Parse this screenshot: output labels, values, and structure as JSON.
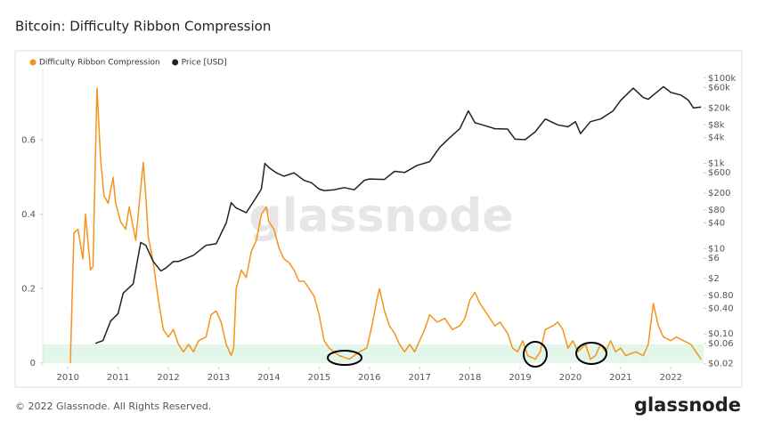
{
  "chart_data": {
    "type": "line",
    "title": "Bitcoin: Difficulty Ribbon Compression",
    "watermark": "glassnode",
    "footer": "© 2022 Glassnode. All Rights Reserved.",
    "logo": "glassnode",
    "xlim": [
      2009.5,
      2022.65
    ],
    "xticks": [
      2010,
      2011,
      2012,
      2013,
      2014,
      2015,
      2016,
      2017,
      2018,
      2019,
      2020,
      2021,
      2022
    ],
    "ylim": [
      -0.01,
      0.79
    ],
    "yticks": [
      0,
      0.2,
      0.4,
      0.6
    ],
    "y2lim": [
      0.017,
      160000
    ],
    "y2_log_scale": true,
    "y2ticks": [
      {
        "value": 100000,
        "label": "$100k"
      },
      {
        "value": 60000,
        "label": "$60k"
      },
      {
        "value": 20000,
        "label": "$20k"
      },
      {
        "value": 8000,
        "label": "$8k"
      },
      {
        "value": 4000,
        "label": "$4k"
      },
      {
        "value": 1000,
        "label": "$1k"
      },
      {
        "value": 600,
        "label": "$600"
      },
      {
        "value": 200,
        "label": "$200"
      },
      {
        "value": 80,
        "label": "$80"
      },
      {
        "value": 40,
        "label": "$40"
      },
      {
        "value": 10,
        "label": "$10"
      },
      {
        "value": 6,
        "label": "$6"
      },
      {
        "value": 2,
        "label": "$2"
      },
      {
        "value": 0.8,
        "label": "$0.80"
      },
      {
        "value": 0.4,
        "label": "$0.40"
      },
      {
        "value": 0.1,
        "label": "$0.10"
      },
      {
        "value": 0.06,
        "label": "$0.06"
      },
      {
        "value": 0.02,
        "label": "$0.02"
      }
    ],
    "shaded_band": {
      "from": 0,
      "to": 0.05,
      "color": "#e3f6ea"
    },
    "legend_position": "top-left",
    "series": [
      {
        "name": "Difficulty Ribbon Compression",
        "color": "#f7931a",
        "x": [
          2010.05,
          2010.12,
          2010.2,
          2010.3,
          2010.35,
          2010.45,
          2010.5,
          2010.58,
          2010.65,
          2010.72,
          2010.8,
          2010.9,
          2010.95,
          2011.05,
          2011.15,
          2011.22,
          2011.35,
          2011.45,
          2011.5,
          2011.55,
          2011.6,
          2011.7,
          2011.8,
          2011.9,
          2012.0,
          2012.1,
          2012.2,
          2012.3,
          2012.4,
          2012.5,
          2012.6,
          2012.75,
          2012.85,
          2012.95,
          2013.05,
          2013.15,
          2013.25,
          2013.3,
          2013.35,
          2013.45,
          2013.55,
          2013.65,
          2013.75,
          2013.85,
          2013.95,
          2014.0,
          2014.1,
          2014.2,
          2014.3,
          2014.4,
          2014.5,
          2014.6,
          2014.7,
          2014.8,
          2014.9,
          2015.0,
          2015.1,
          2015.2,
          2015.3,
          2015.4,
          2015.5,
          2015.6,
          2015.7,
          2015.8,
          2015.95,
          2016.05,
          2016.15,
          2016.2,
          2016.3,
          2016.4,
          2016.5,
          2016.6,
          2016.7,
          2016.8,
          2016.9,
          2017.0,
          2017.1,
          2017.2,
          2017.35,
          2017.5,
          2017.65,
          2017.8,
          2017.9,
          2018.0,
          2018.1,
          2018.2,
          2018.35,
          2018.5,
          2018.6,
          2018.75,
          2018.85,
          2018.95,
          2019.05,
          2019.15,
          2019.3,
          2019.4,
          2019.5,
          2019.65,
          2019.75,
          2019.85,
          2019.95,
          2020.05,
          2020.15,
          2020.3,
          2020.4,
          2020.5,
          2020.6,
          2020.7,
          2020.8,
          2020.9,
          2021.0,
          2021.1,
          2021.3,
          2021.45,
          2021.55,
          2021.65,
          2021.75,
          2021.85,
          2022.0,
          2022.1,
          2022.25,
          2022.4,
          2022.5,
          2022.6
        ],
        "values": [
          0.0,
          0.35,
          0.36,
          0.28,
          0.4,
          0.25,
          0.26,
          0.74,
          0.55,
          0.45,
          0.43,
          0.5,
          0.43,
          0.38,
          0.36,
          0.42,
          0.33,
          0.47,
          0.54,
          0.45,
          0.34,
          0.27,
          0.17,
          0.09,
          0.07,
          0.09,
          0.05,
          0.03,
          0.05,
          0.03,
          0.06,
          0.07,
          0.13,
          0.14,
          0.11,
          0.05,
          0.02,
          0.04,
          0.2,
          0.25,
          0.23,
          0.3,
          0.33,
          0.4,
          0.42,
          0.38,
          0.36,
          0.31,
          0.28,
          0.27,
          0.25,
          0.22,
          0.22,
          0.2,
          0.18,
          0.13,
          0.06,
          0.04,
          0.03,
          0.02,
          0.015,
          0.01,
          0.02,
          0.03,
          0.04,
          0.1,
          0.17,
          0.2,
          0.14,
          0.1,
          0.08,
          0.05,
          0.03,
          0.05,
          0.03,
          0.06,
          0.09,
          0.13,
          0.11,
          0.12,
          0.09,
          0.1,
          0.12,
          0.17,
          0.19,
          0.16,
          0.13,
          0.1,
          0.11,
          0.08,
          0.04,
          0.03,
          0.06,
          0.02,
          0.01,
          0.03,
          0.09,
          0.1,
          0.11,
          0.09,
          0.04,
          0.06,
          0.03,
          0.05,
          0.01,
          0.02,
          0.05,
          0.03,
          0.06,
          0.03,
          0.04,
          0.02,
          0.03,
          0.02,
          0.05,
          0.16,
          0.1,
          0.07,
          0.06,
          0.07,
          0.06,
          0.05,
          0.03,
          0.01
        ]
      },
      {
        "name": "Price [USD]",
        "color": "#222222",
        "axis": "y2",
        "x": [
          2010.55,
          2010.7,
          2010.85,
          2011.0,
          2011.1,
          2011.3,
          2011.45,
          2011.55,
          2011.7,
          2011.85,
          2011.95,
          2012.1,
          2012.2,
          2012.5,
          2012.75,
          2012.95,
          2013.15,
          2013.25,
          2013.35,
          2013.55,
          2013.7,
          2013.85,
          2013.92,
          2014.0,
          2014.15,
          2014.3,
          2014.5,
          2014.7,
          2014.85,
          2015.0,
          2015.1,
          2015.3,
          2015.5,
          2015.7,
          2015.9,
          2016.0,
          2016.3,
          2016.5,
          2016.7,
          2016.95,
          2017.2,
          2017.4,
          2017.6,
          2017.8,
          2017.97,
          2018.1,
          2018.25,
          2018.5,
          2018.75,
          2018.9,
          2019.1,
          2019.3,
          2019.5,
          2019.75,
          2019.95,
          2020.1,
          2020.2,
          2020.4,
          2020.6,
          2020.85,
          2021.0,
          2021.25,
          2021.45,
          2021.55,
          2021.85,
          2022.0,
          2022.2,
          2022.35,
          2022.45,
          2022.6
        ],
        "values": [
          0.06,
          0.07,
          0.2,
          0.3,
          0.9,
          1.5,
          14,
          12,
          5,
          3,
          3.5,
          5,
          5,
          7,
          12,
          13,
          40,
          120,
          90,
          70,
          130,
          250,
          1000,
          800,
          600,
          500,
          600,
          400,
          350,
          250,
          230,
          240,
          270,
          240,
          400,
          430,
          420,
          650,
          610,
          900,
          1100,
          2400,
          4000,
          6500,
          17000,
          9000,
          8000,
          6500,
          6400,
          3700,
          3600,
          5500,
          11000,
          8000,
          7200,
          9500,
          5000,
          9500,
          11000,
          17000,
          30000,
          58000,
          35000,
          32000,
          63000,
          46000,
          40000,
          30000,
          20000,
          21000
        ]
      }
    ]
  }
}
